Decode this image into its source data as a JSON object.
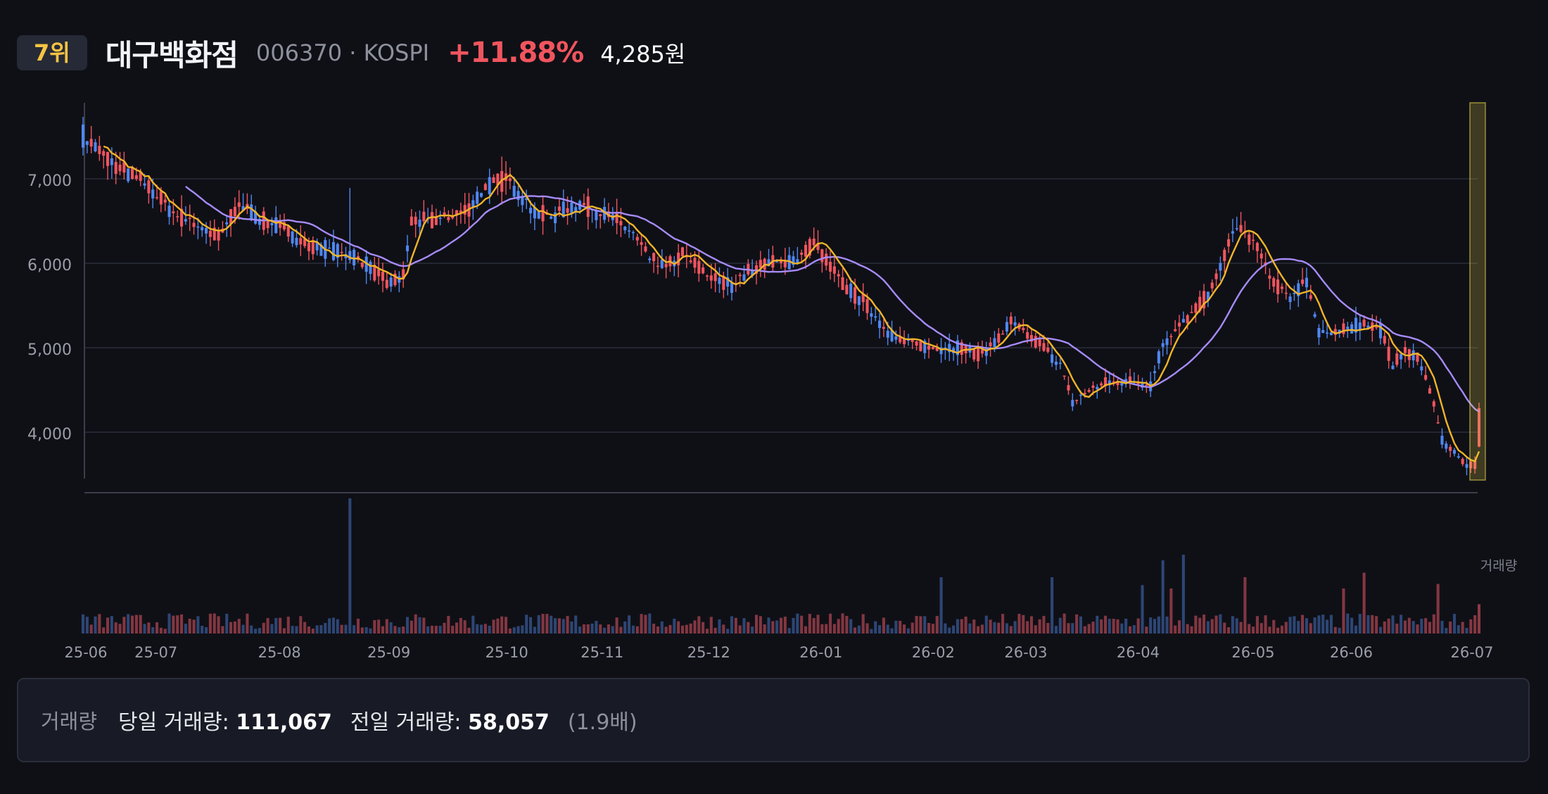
{
  "header": {
    "rank": "7위",
    "name": "대구백화점",
    "code_market": "006370 · KOSPI",
    "change_pct": "+11.88%",
    "price": "4,285원"
  },
  "volume_panel": {
    "label": "거래량",
    "today_label": "당일 거래량:",
    "today_value": "111,067",
    "prev_label": "전일 거래량:",
    "prev_value": "58,057",
    "ratio": "(1.9배)"
  },
  "colors": {
    "background": "#0f1016",
    "up": "#f0555e",
    "down": "#4f87f0",
    "ma_short": "#f0b429",
    "ma_long": "#a78bfa",
    "grid": "#2a2e3a",
    "highlight": "#e8d44d"
  },
  "chart_data": {
    "type": "candlestick",
    "y_ticks": [
      "7,000",
      "6,000",
      "5,000",
      "4,000"
    ],
    "y_tick_values": [
      7000,
      6000,
      5000,
      4000
    ],
    "ylim": [
      3450,
      7900
    ],
    "x_ticks": [
      "25-06",
      "25-07",
      "25-08",
      "25-09",
      "25-10",
      "25-11",
      "25-12",
      "26-01",
      "26-02",
      "26-03",
      "26-04",
      "26-05",
      "26-06",
      "26-07"
    ],
    "volume_label": "거래량",
    "grid": true,
    "price_path": [
      [
        0,
        7500
      ],
      [
        8,
        7150
      ],
      [
        15,
        6950
      ],
      [
        22,
        6600
      ],
      [
        28,
        6450
      ],
      [
        33,
        6300
      ],
      [
        38,
        6700
      ],
      [
        44,
        6500
      ],
      [
        50,
        6380
      ],
      [
        55,
        6200
      ],
      [
        60,
        6150
      ],
      [
        65,
        6100
      ],
      [
        70,
        5950
      ],
      [
        74,
        5750
      ],
      [
        78,
        5850
      ],
      [
        80,
        6500
      ],
      [
        84,
        6500
      ],
      [
        89,
        6550
      ],
      [
        94,
        6650
      ],
      [
        98,
        6900
      ],
      [
        103,
        7000
      ],
      [
        106,
        6850
      ],
      [
        110,
        6600
      ],
      [
        114,
        6550
      ],
      [
        118,
        6650
      ],
      [
        122,
        6700
      ],
      [
        126,
        6600
      ],
      [
        130,
        6500
      ],
      [
        134,
        6350
      ],
      [
        138,
        6050
      ],
      [
        142,
        5950
      ],
      [
        146,
        6100
      ],
      [
        150,
        5950
      ],
      [
        154,
        5800
      ],
      [
        158,
        5750
      ],
      [
        162,
        5900
      ],
      [
        166,
        6000
      ],
      [
        170,
        6000
      ],
      [
        174,
        6050
      ],
      [
        178,
        6250
      ],
      [
        182,
        5950
      ],
      [
        186,
        5700
      ],
      [
        190,
        5550
      ],
      [
        194,
        5300
      ],
      [
        198,
        5100
      ],
      [
        202,
        5050
      ],
      [
        206,
        5000
      ],
      [
        210,
        5000
      ],
      [
        214,
        5000
      ],
      [
        218,
        4920
      ],
      [
        222,
        5050
      ],
      [
        226,
        5300
      ],
      [
        230,
        5150
      ],
      [
        234,
        5000
      ],
      [
        238,
        4800
      ],
      [
        241,
        4350
      ],
      [
        245,
        4500
      ],
      [
        249,
        4580
      ],
      [
        253,
        4600
      ],
      [
        257,
        4600
      ],
      [
        260,
        4550
      ],
      [
        263,
        5050
      ],
      [
        267,
        5250
      ],
      [
        271,
        5450
      ],
      [
        275,
        5700
      ],
      [
        278,
        6100
      ],
      [
        281,
        6450
      ],
      [
        284,
        6300
      ],
      [
        287,
        6100
      ],
      [
        290,
        5750
      ],
      [
        294,
        5600
      ],
      [
        298,
        5800
      ],
      [
        301,
        5200
      ],
      [
        305,
        5150
      ],
      [
        309,
        5250
      ],
      [
        312,
        5300
      ],
      [
        316,
        5200
      ],
      [
        319,
        4800
      ],
      [
        322,
        4950
      ],
      [
        325,
        4900
      ],
      [
        328,
        4500
      ],
      [
        331,
        3900
      ],
      [
        334,
        3750
      ],
      [
        337,
        3620
      ],
      [
        339,
        3600
      ],
      [
        340,
        4285
      ]
    ],
    "volume_spikes": [
      [
        65,
        12.0
      ],
      [
        209,
        5.0
      ],
      [
        236,
        5.0
      ],
      [
        258,
        4.3
      ],
      [
        263,
        6.5
      ],
      [
        265,
        4.0
      ],
      [
        268,
        7.0
      ],
      [
        283,
        5.0
      ],
      [
        307,
        4.0
      ],
      [
        312,
        5.4
      ],
      [
        330,
        4.4
      ],
      [
        340,
        2.6
      ]
    ]
  }
}
